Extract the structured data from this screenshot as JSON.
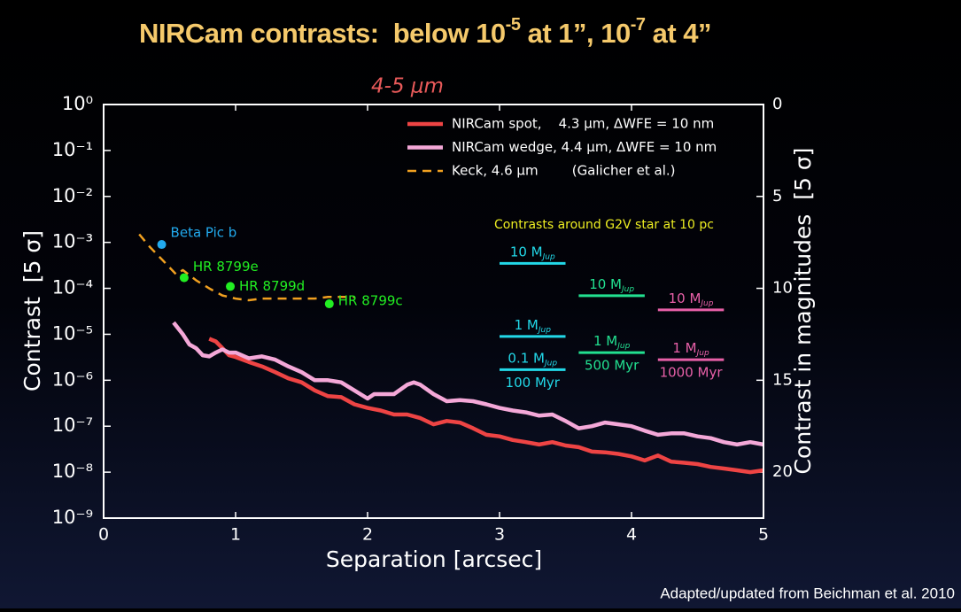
{
  "chart_data": {
    "type": "line",
    "title": [
      "NIRCam contrasts:  below 10",
      "-5",
      " at 1”, 10",
      "-7",
      " at 4”"
    ],
    "subtitle": "4-5 μm",
    "xlabel": "Separation [arcsec]",
    "ylabel": "Contrast  [5 σ]",
    "y2label": "Contrast in magnitudes  [5 σ]",
    "xlim": [
      0,
      5
    ],
    "xticks": [
      0,
      1,
      2,
      3,
      4,
      5
    ],
    "yscale": "log",
    "ylim": [
      1e-09,
      1
    ],
    "yticks": [
      {
        "value": 1,
        "label": "10⁰"
      },
      {
        "value": 0.1,
        "label": "10⁻¹"
      },
      {
        "value": 0.01,
        "label": "10⁻²"
      },
      {
        "value": 0.001,
        "label": "10⁻³"
      },
      {
        "value": 0.0001,
        "label": "10⁻⁴"
      },
      {
        "value": 1e-05,
        "label": "10⁻⁵"
      },
      {
        "value": 1e-06,
        "label": "10⁻⁶"
      },
      {
        "value": 1e-07,
        "label": "10⁻⁷"
      },
      {
        "value": 1e-08,
        "label": "10⁻⁸"
      },
      {
        "value": 1e-09,
        "label": "10⁻⁹"
      }
    ],
    "y2lim": [
      22.5,
      0
    ],
    "y2ticks": [
      0,
      5,
      10,
      15,
      20
    ],
    "legend": "upper right",
    "series": [
      {
        "name": "NIRCam spot,    4.3 μm, ΔWFE = 10 nm",
        "color": "#ee4444",
        "dashed": false,
        "x": [
          0.8,
          0.85,
          0.9,
          0.95,
          1.0,
          1.1,
          1.2,
          1.3,
          1.4,
          1.5,
          1.6,
          1.7,
          1.8,
          1.9,
          2.0,
          2.1,
          2.2,
          2.3,
          2.4,
          2.5,
          2.6,
          2.7,
          2.8,
          2.9,
          3.0,
          3.1,
          3.2,
          3.3,
          3.4,
          3.5,
          3.6,
          3.7,
          3.8,
          3.9,
          4.0,
          4.1,
          4.2,
          4.3,
          4.4,
          4.5,
          4.6,
          4.7,
          4.8,
          4.9,
          5.0
        ],
        "values": [
          8e-06,
          7e-06,
          5e-06,
          3.5e-06,
          3.2e-06,
          2.5e-06,
          2e-06,
          1.5e-06,
          1.1e-06,
          9e-07,
          6e-07,
          4.5e-07,
          4.3e-07,
          3e-07,
          2.5e-07,
          2.2e-07,
          1.8e-07,
          1.8e-07,
          1.5e-07,
          1.1e-07,
          1.3e-07,
          1.2e-07,
          9e-08,
          6.5e-08,
          6e-08,
          5e-08,
          4.5e-08,
          4e-08,
          4.5e-08,
          3.8e-08,
          3.5e-08,
          2.8e-08,
          2.7e-08,
          2.5e-08,
          2.2e-08,
          1.8e-08,
          2.3e-08,
          1.7e-08,
          1.6e-08,
          1.5e-08,
          1.3e-08,
          1.2e-08,
          1.1e-08,
          1e-08,
          1.1e-08
        ]
      },
      {
        "name": "NIRCam wedge, 4.4 μm, ΔWFE = 10 nm",
        "color": "#f4a8d8",
        "dashed": false,
        "x": [
          0.53,
          0.6,
          0.65,
          0.7,
          0.75,
          0.8,
          0.85,
          0.9,
          0.95,
          1.0,
          1.1,
          1.2,
          1.3,
          1.4,
          1.5,
          1.6,
          1.7,
          1.8,
          1.9,
          2.0,
          2.05,
          2.1,
          2.2,
          2.3,
          2.35,
          2.4,
          2.5,
          2.6,
          2.7,
          2.8,
          2.9,
          3.0,
          3.1,
          3.2,
          3.3,
          3.4,
          3.5,
          3.6,
          3.7,
          3.8,
          3.9,
          4.0,
          4.1,
          4.2,
          4.3,
          4.4,
          4.5,
          4.6,
          4.7,
          4.8,
          4.9,
          5.0
        ],
        "values": [
          1.8e-05,
          1e-05,
          6e-06,
          5e-06,
          3.5e-06,
          3.3e-06,
          4e-06,
          4.7e-06,
          4e-06,
          4e-06,
          3e-06,
          3.3e-06,
          2.8e-06,
          2e-06,
          1.5e-06,
          1e-06,
          1e-06,
          9e-07,
          6e-07,
          4e-07,
          5e-07,
          5e-07,
          5e-07,
          8e-07,
          9e-07,
          8e-07,
          5e-07,
          3.5e-07,
          3.7e-07,
          3.5e-07,
          3e-07,
          2.5e-07,
          2.2e-07,
          2e-07,
          1.7e-07,
          1.8e-07,
          1.3e-07,
          9e-08,
          1e-07,
          1.2e-07,
          1.1e-07,
          1e-07,
          8e-08,
          6.5e-08,
          7e-08,
          7e-08,
          6e-08,
          5.5e-08,
          4.5e-08,
          4e-08,
          4.5e-08,
          4e-08
        ]
      },
      {
        "name": "Keck, 4.6 μm        (Galicher et al.)",
        "color": "#f0a020",
        "dashed": true,
        "x": [
          0.27,
          0.35,
          0.45,
          0.55,
          0.6,
          0.7,
          0.8,
          0.9,
          1.0,
          1.1,
          1.2,
          1.4,
          1.6,
          1.7,
          1.8,
          1.9
        ],
        "values": [
          0.0015,
          0.0008,
          0.0004,
          0.0002,
          0.00025,
          0.00015,
          0.0001,
          7e-05,
          6e-05,
          5.5e-05,
          6e-05,
          6e-05,
          6e-05,
          6.5e-05,
          6.5e-05,
          6.5e-05
        ]
      }
    ],
    "planets": [
      {
        "name": "Beta Pic b",
        "color": "#22aaee",
        "x": 0.44,
        "y": 0.0009
      },
      {
        "name": "HR 8799e",
        "color": "#22ee22",
        "x": 0.61,
        "y": 0.00017
      },
      {
        "name": "HR 8799d",
        "color": "#22ee22",
        "x": 0.96,
        "y": 0.00011
      },
      {
        "name": "HR 8799c",
        "color": "#22ee22",
        "x": 1.71,
        "y": 4.6e-05
      }
    ],
    "mass_header": "Contrasts around G2V star at 10 pc",
    "mass_unit_sub": "Jup",
    "mass_columns": [
      {
        "color": "#22d8e8",
        "x0": 3.0,
        "x1": 3.5,
        "age": "100 Myr",
        "segments": [
          {
            "label": "10 M",
            "y": 0.00035
          },
          {
            "label": "1 M",
            "y": 9e-06
          },
          {
            "label": "0.1 M",
            "y": 1.7e-06
          }
        ]
      },
      {
        "color": "#22e090",
        "x0": 3.6,
        "x1": 4.1,
        "age": "500 Myr",
        "segments": [
          {
            "label": "10 M",
            "y": 6.9e-05
          },
          {
            "label": "1 M",
            "y": 4e-06
          }
        ]
      },
      {
        "color": "#e860a8",
        "x0": 4.2,
        "x1": 4.7,
        "age": "1000 Myr",
        "segments": [
          {
            "label": "10 M",
            "y": 3.4e-05
          },
          {
            "label": "1 M",
            "y": 2.8e-06
          }
        ]
      }
    ],
    "credit": "Adapted/updated from Beichman et al. 2010"
  }
}
